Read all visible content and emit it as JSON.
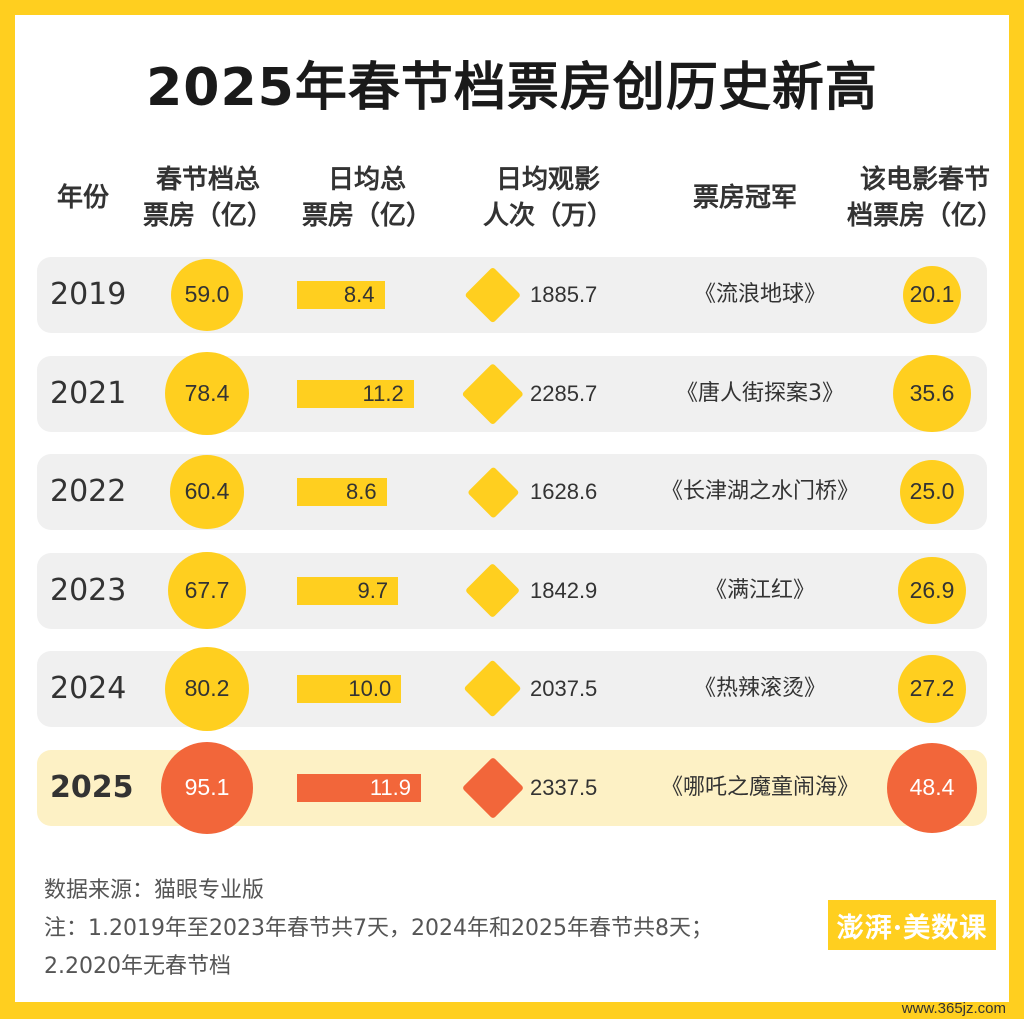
{
  "title": "2025年春节档票房创历史新高",
  "headers": {
    "year": "年份",
    "total": "春节档总\n票房（亿）",
    "daily": "日均总\n票房（亿）",
    "viewers": "日均观影\n人次（万）",
    "champion": "票房冠军",
    "champion_gross": "该电影春节\n档票房（亿）"
  },
  "colors": {
    "accent": "#ffcf1f",
    "highlight": "#f2663a",
    "highlight_row": "#fdf1c5",
    "row": "#f0f0f0"
  },
  "chart_data": {
    "type": "table",
    "rows": [
      {
        "year": "2019",
        "total": 59.0,
        "daily": 8.4,
        "viewers": 1885.7,
        "movie": "《流浪地球》",
        "movie_gross": 20.1,
        "highlight": false
      },
      {
        "year": "2021",
        "total": 78.4,
        "daily": 11.2,
        "viewers": 2285.7,
        "movie": "《唐人街探案3》",
        "movie_gross": 35.6,
        "highlight": false
      },
      {
        "year": "2022",
        "total": 60.4,
        "daily": 8.6,
        "viewers": 1628.6,
        "movie": "《长津湖之水门桥》",
        "movie_gross": 25.0,
        "highlight": false
      },
      {
        "year": "2023",
        "total": 67.7,
        "daily": 9.7,
        "viewers": 1842.9,
        "movie": "《满江红》",
        "movie_gross": 26.9,
        "highlight": false
      },
      {
        "year": "2024",
        "total": 80.2,
        "daily": 10.0,
        "viewers": 2037.5,
        "movie": "《热辣滚烫》",
        "movie_gross": 27.2,
        "highlight": false
      },
      {
        "year": "2025",
        "total": 95.1,
        "daily": 11.9,
        "viewers": 2337.5,
        "movie": "《哪吒之魔童闹海》",
        "movie_gross": 48.4,
        "highlight": true
      }
    ]
  },
  "footer": {
    "source": "数据来源：猫眼专业版",
    "note1": "注：1.2019年至2023年春节共7天，2024年和2025年春节共8天；",
    "note2": "2.2020年无春节档"
  },
  "brand": "澎湃·美数课",
  "watermark": "www.365jz.com"
}
